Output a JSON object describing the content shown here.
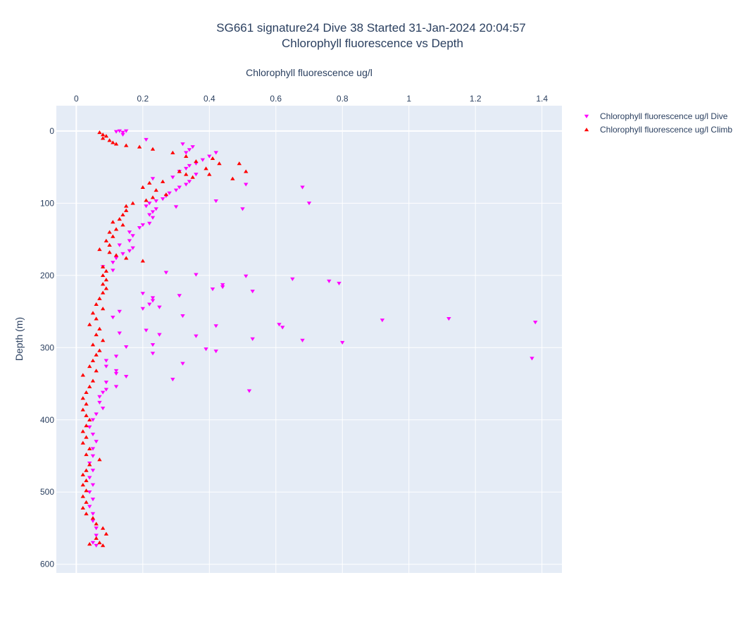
{
  "chart_data": {
    "type": "scatter",
    "title_lines": [
      "SG661 signature24 Dive 38 Started 31-Jan-2024 20:04:57",
      "Chlorophyll fluorescence vs Depth"
    ],
    "xlabel": "Chlorophyll fluorescence ug/l",
    "ylabel": "Depth (m)",
    "x_axis_position": "top",
    "y_axis_reversed": true,
    "xlim": [
      -0.06,
      1.46
    ],
    "ylim": [
      612,
      -35
    ],
    "x_ticks": [
      0,
      0.2,
      0.4,
      0.6,
      0.8,
      1,
      1.2,
      1.4
    ],
    "x_tick_labels": [
      "0",
      "0.2",
      "0.4",
      "0.6",
      "0.8",
      "1",
      "1.2",
      "1.4"
    ],
    "y_ticks": [
      0,
      100,
      200,
      300,
      400,
      500,
      600
    ],
    "y_tick_labels": [
      "0",
      "100",
      "200",
      "300",
      "400",
      "500",
      "600"
    ],
    "grid": true,
    "legend_position": "top-right",
    "series": [
      {
        "name": "Chlorophyll fluorescence ug/l Dive",
        "marker": "triangle-down",
        "color": "#ff00ff",
        "points": [
          [
            0.12,
            1
          ],
          [
            0.13,
            0
          ],
          [
            0.14,
            2
          ],
          [
            0.15,
            0
          ],
          [
            0.14,
            5
          ],
          [
            0.21,
            12
          ],
          [
            0.32,
            18
          ],
          [
            0.35,
            22
          ],
          [
            0.34,
            26
          ],
          [
            0.33,
            30
          ],
          [
            0.42,
            30
          ],
          [
            0.4,
            35
          ],
          [
            0.38,
            40
          ],
          [
            0.36,
            45
          ],
          [
            0.34,
            48
          ],
          [
            0.33,
            52
          ],
          [
            0.31,
            56
          ],
          [
            0.36,
            60
          ],
          [
            0.29,
            64
          ],
          [
            0.23,
            66
          ],
          [
            0.34,
            70
          ],
          [
            0.33,
            74
          ],
          [
            0.31,
            78
          ],
          [
            0.3,
            82
          ],
          [
            0.28,
            86
          ],
          [
            0.27,
            90
          ],
          [
            0.26,
            94
          ],
          [
            0.24,
            97
          ],
          [
            0.22,
            100
          ],
          [
            0.42,
            97
          ],
          [
            0.21,
            104
          ],
          [
            0.24,
            108
          ],
          [
            0.3,
            105
          ],
          [
            0.23,
            112
          ],
          [
            0.22,
            116
          ],
          [
            0.23,
            120
          ],
          [
            0.2,
            130
          ],
          [
            0.19,
            134
          ],
          [
            0.22,
            128
          ],
          [
            0.16,
            140
          ],
          [
            0.17,
            145
          ],
          [
            0.16,
            152
          ],
          [
            0.13,
            158
          ],
          [
            0.17,
            162
          ],
          [
            0.16,
            166
          ],
          [
            0.14,
            170
          ],
          [
            0.12,
            176
          ],
          [
            0.11,
            182
          ],
          [
            0.08,
            188
          ],
          [
            0.11,
            193
          ],
          [
            0.5,
            108
          ],
          [
            0.68,
            78
          ],
          [
            0.7,
            100
          ],
          [
            0.51,
            74
          ],
          [
            0.27,
            196
          ],
          [
            0.36,
            199
          ],
          [
            0.51,
            201
          ],
          [
            0.65,
            205
          ],
          [
            0.76,
            208
          ],
          [
            0.79,
            211
          ],
          [
            0.44,
            213
          ],
          [
            0.44,
            216
          ],
          [
            0.41,
            219
          ],
          [
            0.53,
            222
          ],
          [
            0.2,
            225
          ],
          [
            0.31,
            228
          ],
          [
            0.23,
            231
          ],
          [
            0.23,
            235
          ],
          [
            0.25,
            244
          ],
          [
            0.22,
            240
          ],
          [
            0.2,
            246
          ],
          [
            0.13,
            250
          ],
          [
            0.32,
            256
          ],
          [
            0.11,
            258
          ],
          [
            0.92,
            262
          ],
          [
            1.12,
            260
          ],
          [
            1.38,
            265
          ],
          [
            0.61,
            268
          ],
          [
            0.62,
            272
          ],
          [
            0.42,
            270
          ],
          [
            0.21,
            276
          ],
          [
            0.13,
            280
          ],
          [
            0.25,
            282
          ],
          [
            0.36,
            284
          ],
          [
            0.53,
            288
          ],
          [
            0.68,
            290
          ],
          [
            0.8,
            293
          ],
          [
            0.23,
            296
          ],
          [
            0.15,
            299
          ],
          [
            0.39,
            302
          ],
          [
            0.42,
            305
          ],
          [
            0.23,
            308
          ],
          [
            0.12,
            312
          ],
          [
            1.37,
            315
          ],
          [
            0.09,
            318
          ],
          [
            0.32,
            322
          ],
          [
            0.09,
            326
          ],
          [
            0.12,
            332
          ],
          [
            0.12,
            336
          ],
          [
            0.15,
            340
          ],
          [
            0.29,
            344
          ],
          [
            0.09,
            348
          ],
          [
            0.12,
            354
          ],
          [
            0.52,
            360
          ],
          [
            0.09,
            358
          ],
          [
            0.08,
            362
          ],
          [
            0.07,
            368
          ],
          [
            0.07,
            376
          ],
          [
            0.08,
            384
          ],
          [
            0.06,
            392
          ],
          [
            0.05,
            400
          ],
          [
            0.04,
            410
          ],
          [
            0.05,
            420
          ],
          [
            0.06,
            430
          ],
          [
            0.05,
            440
          ],
          [
            0.05,
            450
          ],
          [
            0.04,
            460
          ],
          [
            0.05,
            470
          ],
          [
            0.04,
            480
          ],
          [
            0.05,
            490
          ],
          [
            0.04,
            500
          ],
          [
            0.05,
            510
          ],
          [
            0.04,
            520
          ],
          [
            0.05,
            530
          ],
          [
            0.05,
            540
          ],
          [
            0.06,
            550
          ],
          [
            0.06,
            560
          ],
          [
            0.05,
            570
          ],
          [
            0.06,
            574
          ]
        ]
      },
      {
        "name": "Chlorophyll fluorescence ug/l Climb",
        "marker": "triangle-up",
        "color": "#ff0000",
        "points": [
          [
            0.07,
            2
          ],
          [
            0.08,
            5
          ],
          [
            0.09,
            7
          ],
          [
            0.08,
            10
          ],
          [
            0.1,
            13
          ],
          [
            0.11,
            16
          ],
          [
            0.12,
            18
          ],
          [
            0.15,
            20
          ],
          [
            0.19,
            22
          ],
          [
            0.23,
            25
          ],
          [
            0.29,
            30
          ],
          [
            0.33,
            35
          ],
          [
            0.41,
            38
          ],
          [
            0.36,
            42
          ],
          [
            0.43,
            45
          ],
          [
            0.49,
            45
          ],
          [
            0.51,
            56
          ],
          [
            0.39,
            52
          ],
          [
            0.31,
            56
          ],
          [
            0.33,
            60
          ],
          [
            0.47,
            66
          ],
          [
            0.4,
            60
          ],
          [
            0.35,
            64
          ],
          [
            0.26,
            70
          ],
          [
            0.22,
            72
          ],
          [
            0.2,
            78
          ],
          [
            0.24,
            82
          ],
          [
            0.27,
            88
          ],
          [
            0.23,
            92
          ],
          [
            0.21,
            96
          ],
          [
            0.17,
            100
          ],
          [
            0.15,
            104
          ],
          [
            0.15,
            110
          ],
          [
            0.14,
            116
          ],
          [
            0.13,
            122
          ],
          [
            0.11,
            126
          ],
          [
            0.14,
            130
          ],
          [
            0.12,
            136
          ],
          [
            0.1,
            140
          ],
          [
            0.11,
            146
          ],
          [
            0.09,
            152
          ],
          [
            0.1,
            158
          ],
          [
            0.07,
            164
          ],
          [
            0.1,
            168
          ],
          [
            0.12,
            172
          ],
          [
            0.15,
            176
          ],
          [
            0.2,
            180
          ],
          [
            0.08,
            188
          ],
          [
            0.09,
            194
          ],
          [
            0.08,
            200
          ],
          [
            0.09,
            206
          ],
          [
            0.08,
            212
          ],
          [
            0.09,
            218
          ],
          [
            0.08,
            224
          ],
          [
            0.07,
            232
          ],
          [
            0.06,
            240
          ],
          [
            0.08,
            246
          ],
          [
            0.05,
            252
          ],
          [
            0.06,
            260
          ],
          [
            0.04,
            268
          ],
          [
            0.07,
            274
          ],
          [
            0.06,
            282
          ],
          [
            0.08,
            290
          ],
          [
            0.05,
            296
          ],
          [
            0.07,
            304
          ],
          [
            0.06,
            310
          ],
          [
            0.05,
            318
          ],
          [
            0.04,
            326
          ],
          [
            0.06,
            332
          ],
          [
            0.02,
            338
          ],
          [
            0.05,
            346
          ],
          [
            0.04,
            354
          ],
          [
            0.03,
            362
          ],
          [
            0.02,
            370
          ],
          [
            0.03,
            378
          ],
          [
            0.02,
            386
          ],
          [
            0.03,
            394
          ],
          [
            0.04,
            400
          ],
          [
            0.03,
            408
          ],
          [
            0.02,
            416
          ],
          [
            0.03,
            424
          ],
          [
            0.02,
            432
          ],
          [
            0.04,
            440
          ],
          [
            0.03,
            448
          ],
          [
            0.07,
            455
          ],
          [
            0.04,
            462
          ],
          [
            0.03,
            470
          ],
          [
            0.02,
            476
          ],
          [
            0.03,
            484
          ],
          [
            0.02,
            490
          ],
          [
            0.03,
            498
          ],
          [
            0.02,
            506
          ],
          [
            0.03,
            514
          ],
          [
            0.02,
            522
          ],
          [
            0.03,
            530
          ],
          [
            0.05,
            536
          ],
          [
            0.06,
            544
          ],
          [
            0.08,
            550
          ],
          [
            0.09,
            558
          ],
          [
            0.06,
            564
          ],
          [
            0.07,
            570
          ],
          [
            0.04,
            572
          ],
          [
            0.08,
            574
          ]
        ]
      }
    ]
  }
}
